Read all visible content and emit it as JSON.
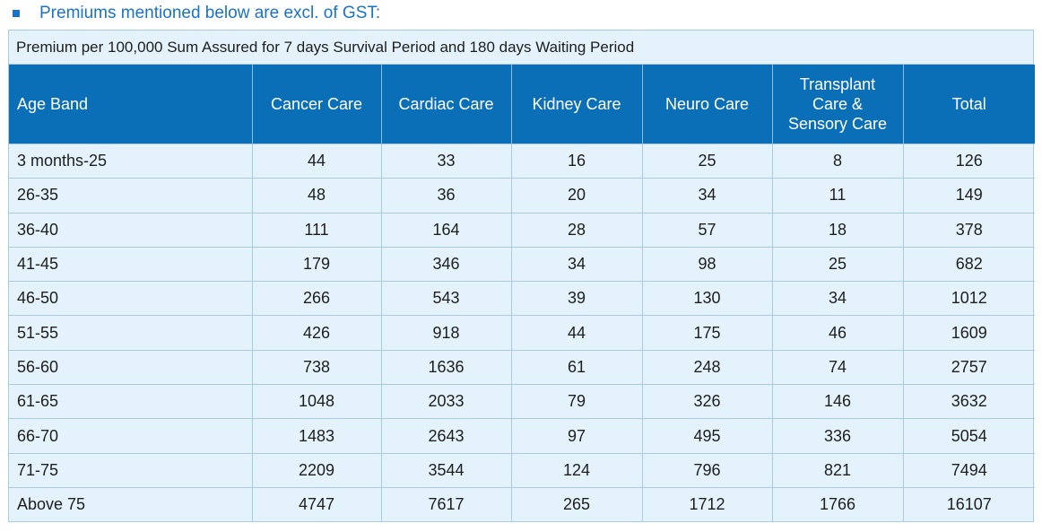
{
  "heading": "Premiums mentioned below are excl. of GST:",
  "table": {
    "caption": "Premium per 100,000 Sum Assured for 7 days Survival Period and 180 days Waiting Period",
    "headers": [
      [
        "Age Band"
      ],
      [
        "Cancer Care"
      ],
      [
        "Cardiac Care"
      ],
      [
        "Kidney Care"
      ],
      [
        "Neuro Care"
      ],
      [
        "Transplant",
        "Care &",
        "Sensory Care"
      ],
      [
        "Total"
      ]
    ],
    "rows": [
      [
        "3 months-25",
        "44",
        "33",
        "16",
        "25",
        "8",
        "126"
      ],
      [
        "26-35",
        "48",
        "36",
        "20",
        "34",
        "11",
        "149"
      ],
      [
        "36-40",
        "111",
        "164",
        "28",
        "57",
        "18",
        "378"
      ],
      [
        "41-45",
        "179",
        "346",
        "34",
        "98",
        "25",
        "682"
      ],
      [
        "46-50",
        "266",
        "543",
        "39",
        "130",
        "34",
        "1012"
      ],
      [
        "51-55",
        "426",
        "918",
        "44",
        "175",
        "46",
        "1609"
      ],
      [
        "56-60",
        "738",
        "1636",
        "61",
        "248",
        "74",
        "2757"
      ],
      [
        "61-65",
        "1048",
        "2033",
        "79",
        "326",
        "146",
        "3632"
      ],
      [
        "66-70",
        "1483",
        "2643",
        "97",
        "495",
        "336",
        "5054"
      ],
      [
        "71-75",
        "2209",
        "3544",
        "124",
        "796",
        "821",
        "7494"
      ],
      [
        "Above 75",
        "4747",
        "7617",
        "265",
        "1712",
        "1766",
        "16107"
      ]
    ]
  }
}
